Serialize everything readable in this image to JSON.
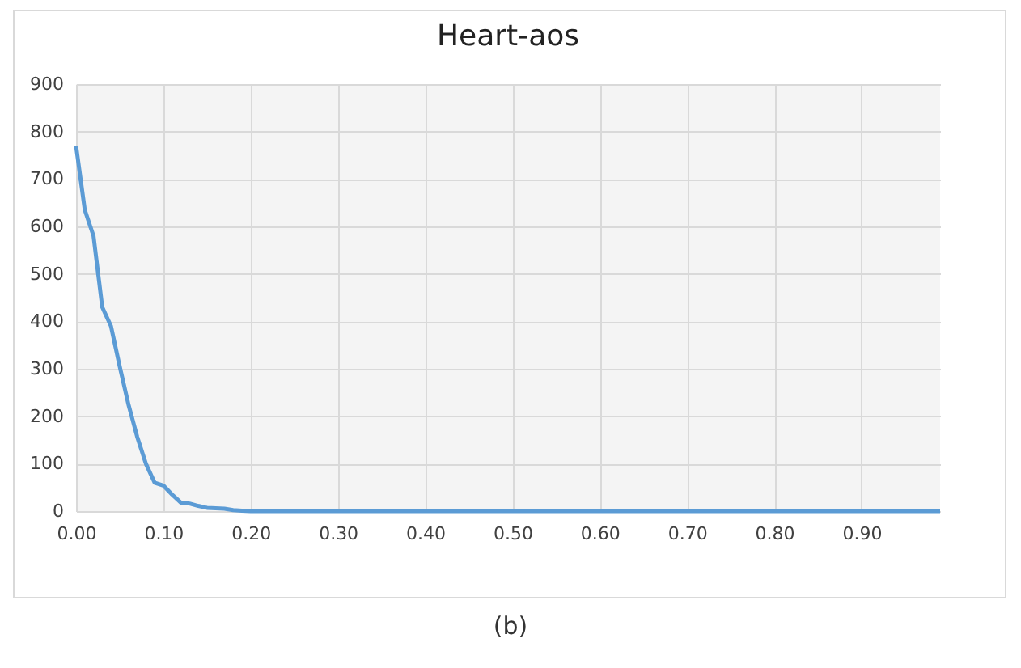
{
  "chart_data": {
    "type": "line",
    "title": "Heart-aos",
    "x": [
      0,
      0.01,
      0.02,
      0.03,
      0.04,
      0.05,
      0.06,
      0.07,
      0.08,
      0.09,
      0.1,
      0.11,
      0.12,
      0.13,
      0.14,
      0.15,
      0.16,
      0.17,
      0.18,
      0.19,
      0.2,
      0.99
    ],
    "series": [
      {
        "color": "#5b9bd5",
        "values": [
          770,
          635,
          580,
          430,
          390,
          305,
          225,
          157,
          100,
          60,
          54,
          35,
          18,
          16,
          11,
          7,
          6,
          5,
          2,
          1,
          0,
          0
        ]
      }
    ],
    "xlim": [
      0,
      0.99
    ],
    "xticks": [
      {
        "value": 0,
        "label": "0.00"
      },
      {
        "value": 0.1,
        "label": "0.10"
      },
      {
        "value": 0.2,
        "label": "0.20"
      },
      {
        "value": 0.3,
        "label": "0.30"
      },
      {
        "value": 0.4,
        "label": "0.40"
      },
      {
        "value": 0.5,
        "label": "0.50"
      },
      {
        "value": 0.6,
        "label": "0.60"
      },
      {
        "value": 0.7,
        "label": "0.70"
      },
      {
        "value": 0.8,
        "label": "0.80"
      },
      {
        "value": 0.9,
        "label": "0.90"
      }
    ],
    "ylim": [
      0,
      900
    ],
    "yticks": [
      0,
      100,
      200,
      300,
      400,
      500,
      600,
      700,
      800,
      900
    ],
    "grid": true,
    "legend": false,
    "marker": "none",
    "line_style": "solid",
    "annotations": [
      "(b)"
    ]
  }
}
